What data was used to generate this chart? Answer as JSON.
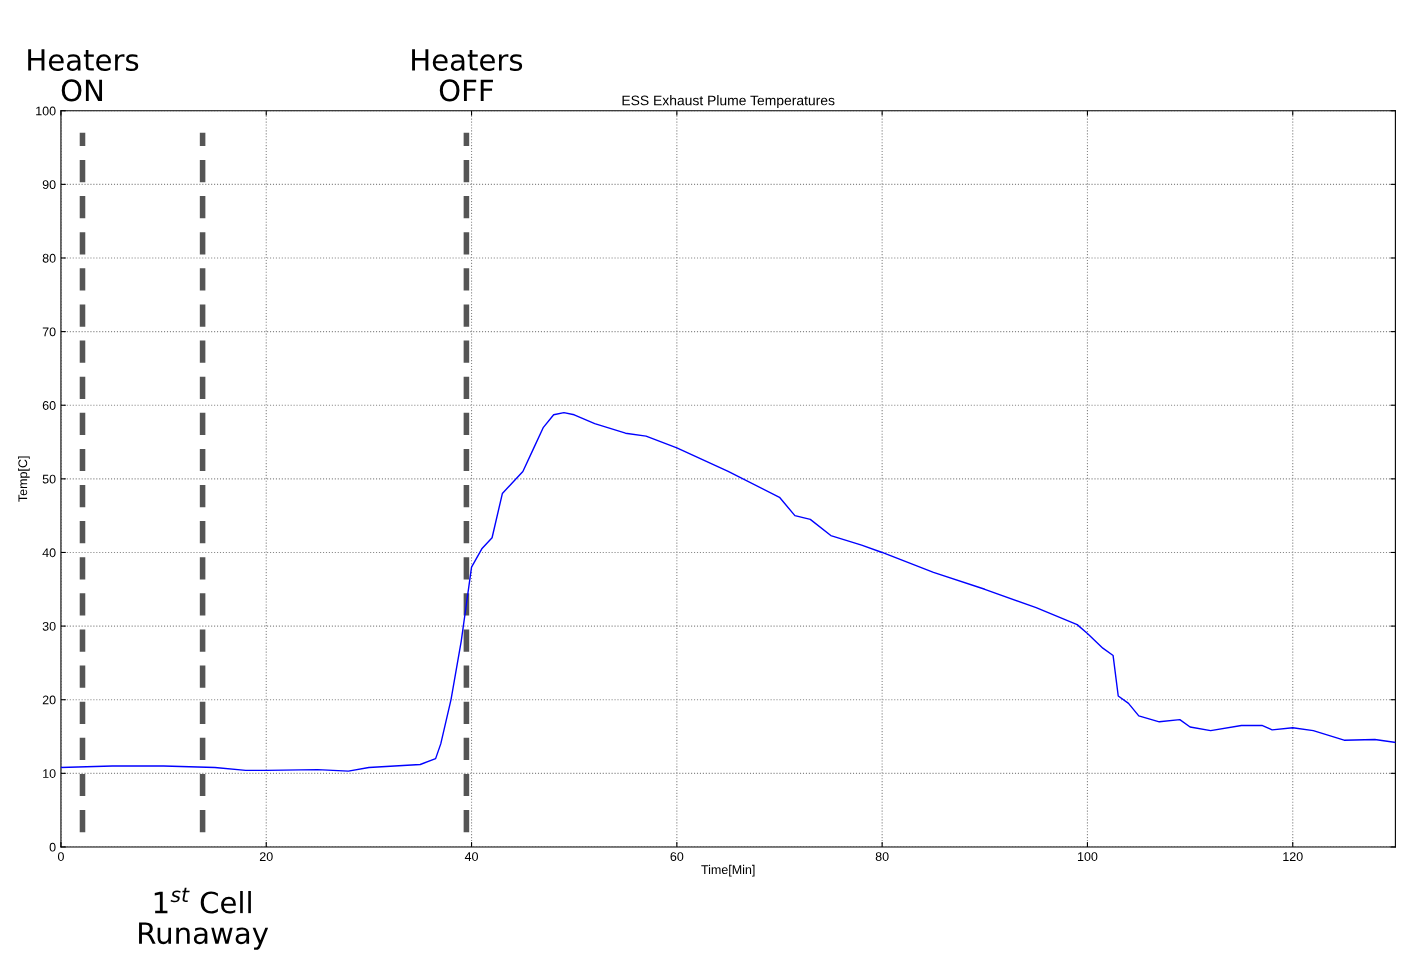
{
  "chart_data": {
    "type": "line",
    "title": "ESS Exhaust Plume Temperatures",
    "xlabel": "Time[Min]",
    "ylabel": "Temp[C]",
    "series": [
      {
        "color": "#0000ff",
        "x": [
          0,
          5,
          10,
          15,
          18,
          20,
          25,
          28,
          30,
          35,
          36.5,
          37,
          38,
          39,
          39.5,
          40,
          41,
          42,
          43,
          44,
          45,
          46,
          47,
          48,
          49,
          50,
          52,
          55,
          57,
          60,
          65,
          70,
          71.5,
          73,
          75,
          78,
          80,
          85,
          90,
          95,
          99,
          100,
          101.5,
          102.5,
          103,
          104,
          105,
          107,
          109,
          110,
          112,
          115,
          117,
          118,
          120,
          122,
          125,
          128,
          130
        ],
        "values": [
          10.8,
          11.0,
          11.0,
          10.8,
          10.4,
          10.4,
          10.5,
          10.3,
          10.8,
          11.2,
          12,
          14,
          20,
          28,
          33,
          38,
          40.5,
          42,
          48,
          49.5,
          51,
          54,
          57,
          58.7,
          59,
          58.7,
          57.5,
          56.2,
          55.8,
          54.2,
          51,
          47.5,
          45,
          44.5,
          42.3,
          41,
          40,
          37.3,
          35,
          32.5,
          30.2,
          29,
          27,
          26,
          20.5,
          19.5,
          17.8,
          17,
          17.3,
          16.3,
          15.8,
          16.5,
          16.5,
          15.9,
          16.2,
          15.8,
          14.5,
          14.6,
          14.2
        ]
      }
    ],
    "xlim": [
      0,
      130
    ],
    "xticks": [
      0,
      20,
      40,
      60,
      80,
      100,
      120
    ],
    "ylim": [
      0,
      100
    ],
    "yticks": [
      0,
      10,
      20,
      30,
      40,
      50,
      60,
      70,
      80,
      90,
      100
    ],
    "grid": true,
    "line_style": "solid",
    "marker": "none",
    "ref_lines": [
      {
        "axis": "x",
        "value": 2.1,
        "label": "Heaters\nON",
        "color": "#555555",
        "line_style": "dashed"
      },
      {
        "axis": "x",
        "value": 13.8,
        "label": "1$^{st}$ Cell\nRunaway",
        "color": "#555555",
        "line_style": "dashed"
      },
      {
        "axis": "x",
        "value": 39.5,
        "label": "Heaters\nOFF",
        "color": "#555555",
        "line_style": "dashed"
      }
    ]
  }
}
